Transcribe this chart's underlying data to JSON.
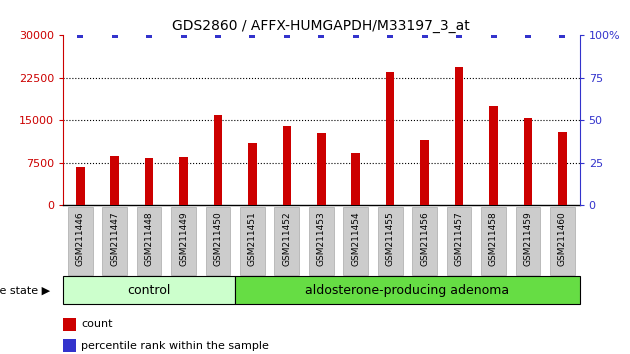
{
  "title": "GDS2860 / AFFX-HUMGAPDH/M33197_3_at",
  "categories": [
    "GSM211446",
    "GSM211447",
    "GSM211448",
    "GSM211449",
    "GSM211450",
    "GSM211451",
    "GSM211452",
    "GSM211453",
    "GSM211454",
    "GSM211455",
    "GSM211456",
    "GSM211457",
    "GSM211458",
    "GSM211459",
    "GSM211460"
  ],
  "counts": [
    6800,
    8700,
    8300,
    8500,
    16000,
    11000,
    14000,
    12700,
    9200,
    23500,
    11500,
    24500,
    17500,
    15500,
    13000
  ],
  "percentiles": [
    100,
    100,
    100,
    100,
    100,
    100,
    100,
    100,
    100,
    100,
    100,
    100,
    100,
    100,
    100
  ],
  "bar_color": "#cc0000",
  "percentile_color": "#3333cc",
  "ylim_left": [
    0,
    30000
  ],
  "ylim_right": [
    0,
    100
  ],
  "yticks_left": [
    0,
    7500,
    15000,
    22500,
    30000
  ],
  "yticks_right": [
    0,
    25,
    50,
    75,
    100
  ],
  "yticklabels_right": [
    "0",
    "25",
    "50",
    "75",
    "100%"
  ],
  "background_color": "#ffffff",
  "n_control": 5,
  "n_adenoma": 10,
  "control_label": "control",
  "adenoma_label": "aldosterone-producing adenoma",
  "control_color": "#ccffcc",
  "adenoma_color": "#66dd44",
  "disease_state_label": "disease state",
  "legend_count_label": "count",
  "legend_percentile_label": "percentile rank within the sample",
  "tick_label_bg": "#cccccc",
  "bar_width": 0.25
}
